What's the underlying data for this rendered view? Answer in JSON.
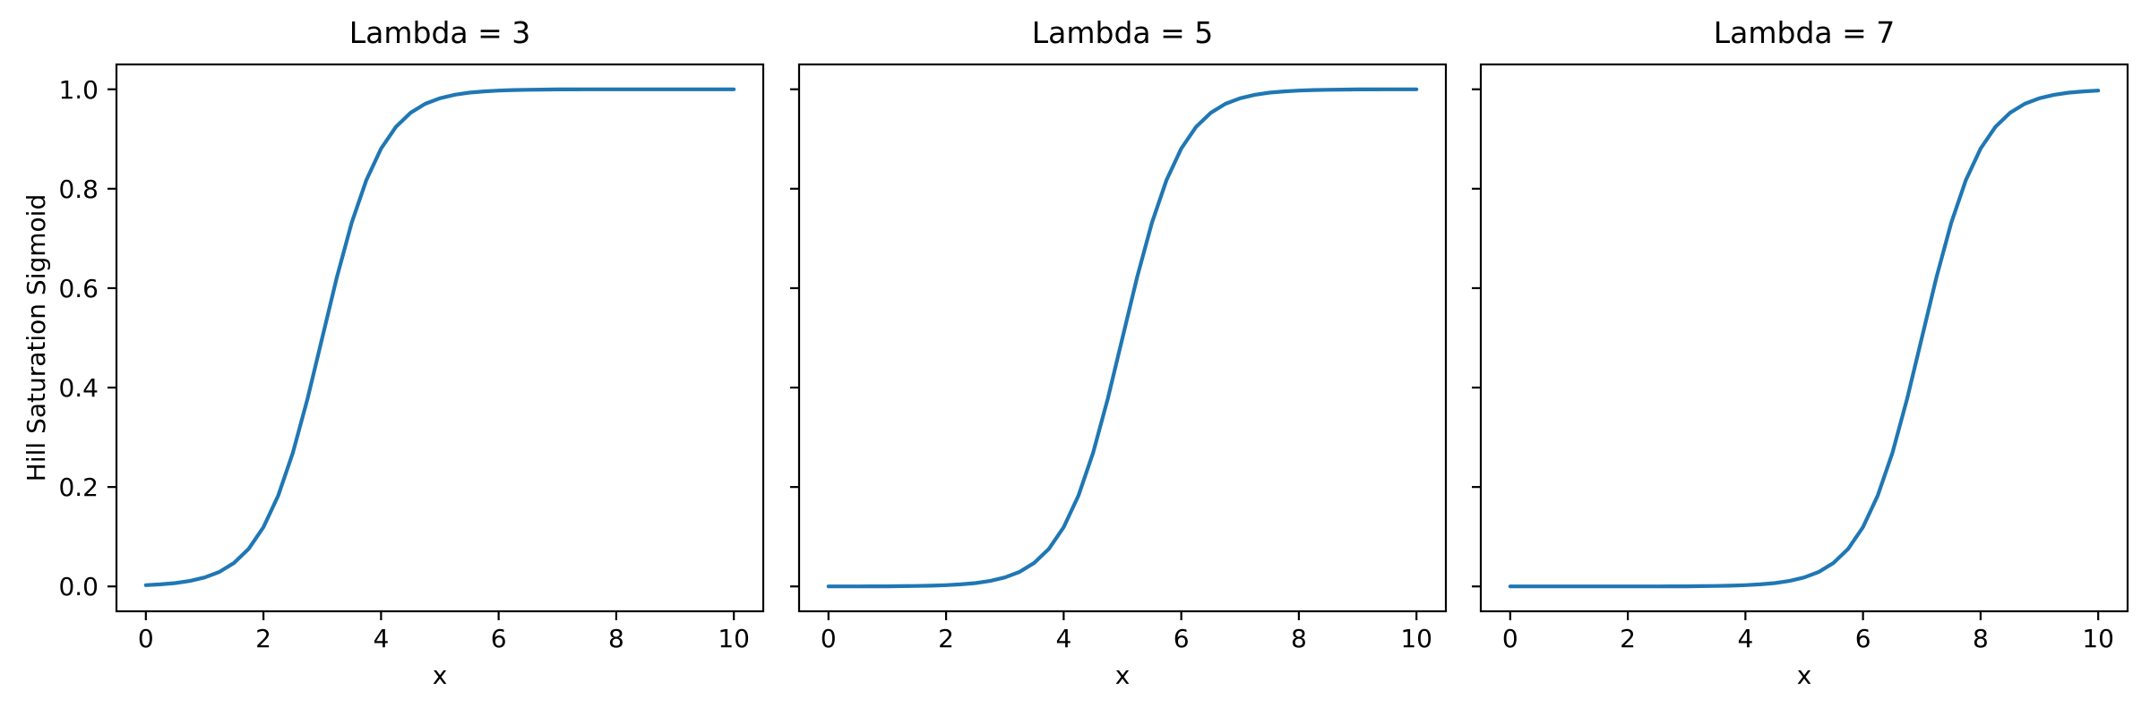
{
  "figure": {
    "background": "#ffffff",
    "axis_color": "#000000",
    "text_color": "#000000"
  },
  "chart_data": [
    {
      "type": "line",
      "title": "Lambda = 3",
      "lambda": 3,
      "xlabel": "x",
      "ylabel": "Hill Saturation Sigmoid",
      "xlim": [
        -0.5,
        10.5
      ],
      "ylim": [
        -0.05,
        1.05
      ],
      "grid": false,
      "legend": null,
      "x_ticks": [
        0,
        2,
        4,
        6,
        8,
        10
      ],
      "x_tick_labels": [
        "0",
        "2",
        "4",
        "6",
        "8",
        "10"
      ],
      "y_ticks": [
        0.0,
        0.2,
        0.4,
        0.6,
        0.8,
        1.0
      ],
      "y_tick_labels": [
        "0.0",
        "0.2",
        "0.4",
        "0.6",
        "0.8",
        "1.0"
      ],
      "show_y_tick_labels": true,
      "series": [
        {
          "color": "#1f77b4",
          "x": [
            0,
            0.25,
            0.5,
            0.75,
            1,
            1.25,
            1.5,
            1.75,
            2,
            2.25,
            2.5,
            2.75,
            3,
            3.25,
            3.5,
            3.75,
            4,
            4.25,
            4.5,
            4.75,
            5,
            5.25,
            5.5,
            5.75,
            6,
            6.25,
            6.5,
            6.75,
            7,
            7.25,
            7.5,
            7.75,
            8,
            8.25,
            8.5,
            8.75,
            9,
            9.25,
            9.5,
            9.75,
            10
          ],
          "values": [
            0.0025,
            0.0041,
            0.0067,
            0.011,
            0.018,
            0.0293,
            0.0474,
            0.0759,
            0.1192,
            0.1824,
            0.2689,
            0.3775,
            0.5,
            0.6225,
            0.7311,
            0.8176,
            0.8808,
            0.9241,
            0.9526,
            0.9707,
            0.982,
            0.989,
            0.9933,
            0.9959,
            0.9975,
            0.9985,
            0.9991,
            0.9994,
            0.9997,
            0.9998,
            0.9999,
            0.9999,
            0.9999,
            1,
            1,
            1,
            1,
            1,
            1,
            1,
            1
          ]
        }
      ]
    },
    {
      "type": "line",
      "title": "Lambda = 5",
      "lambda": 5,
      "xlabel": "x",
      "ylabel": "",
      "xlim": [
        -0.5,
        10.5
      ],
      "ylim": [
        -0.05,
        1.05
      ],
      "grid": false,
      "legend": null,
      "x_ticks": [
        0,
        2,
        4,
        6,
        8,
        10
      ],
      "x_tick_labels": [
        "0",
        "2",
        "4",
        "6",
        "8",
        "10"
      ],
      "y_ticks": [
        0.0,
        0.2,
        0.4,
        0.6,
        0.8,
        1.0
      ],
      "y_tick_labels": [],
      "show_y_tick_labels": false,
      "series": [
        {
          "color": "#1f77b4",
          "x": [
            0,
            0.25,
            0.5,
            0.75,
            1,
            1.25,
            1.5,
            1.75,
            2,
            2.25,
            2.5,
            2.75,
            3,
            3.25,
            3.5,
            3.75,
            4,
            4.25,
            4.5,
            4.75,
            5,
            5.25,
            5.5,
            5.75,
            6,
            6.25,
            6.5,
            6.75,
            7,
            7.25,
            7.5,
            7.75,
            8,
            8.25,
            8.5,
            8.75,
            9,
            9.25,
            9.5,
            9.75,
            10
          ],
          "values": [
            0,
            0.0001,
            0.0001,
            0.0002,
            0.0003,
            0.0006,
            0.0009,
            0.0015,
            0.0025,
            0.0041,
            0.0067,
            0.011,
            0.018,
            0.0293,
            0.0474,
            0.0759,
            0.1192,
            0.1824,
            0.2689,
            0.3775,
            0.5,
            0.6225,
            0.7311,
            0.8176,
            0.8808,
            0.9241,
            0.9526,
            0.9707,
            0.982,
            0.989,
            0.9933,
            0.9959,
            0.9975,
            0.9985,
            0.9991,
            0.9994,
            0.9997,
            0.9998,
            0.9999,
            0.9999,
            0.9999
          ]
        }
      ]
    },
    {
      "type": "line",
      "title": "Lambda = 7",
      "lambda": 7,
      "xlabel": "x",
      "ylabel": "",
      "xlim": [
        -0.5,
        10.5
      ],
      "ylim": [
        -0.05,
        1.05
      ],
      "grid": false,
      "legend": null,
      "x_ticks": [
        0,
        2,
        4,
        6,
        8,
        10
      ],
      "x_tick_labels": [
        "0",
        "2",
        "4",
        "6",
        "8",
        "10"
      ],
      "y_ticks": [
        0.0,
        0.2,
        0.4,
        0.6,
        0.8,
        1.0
      ],
      "y_tick_labels": [],
      "show_y_tick_labels": false,
      "series": [
        {
          "color": "#1f77b4",
          "x": [
            0,
            0.25,
            0.5,
            0.75,
            1,
            1.25,
            1.5,
            1.75,
            2,
            2.25,
            2.5,
            2.75,
            3,
            3.25,
            3.5,
            3.75,
            4,
            4.25,
            4.5,
            4.75,
            5,
            5.25,
            5.5,
            5.75,
            6,
            6.25,
            6.5,
            6.75,
            7,
            7.25,
            7.5,
            7.75,
            8,
            8.25,
            8.5,
            8.75,
            9,
            9.25,
            9.5,
            9.75,
            10
          ],
          "values": [
            0,
            0,
            0,
            0,
            0,
            0,
            0,
            0,
            0,
            0.0001,
            0.0001,
            0.0002,
            0.0003,
            0.0006,
            0.0009,
            0.0015,
            0.0025,
            0.0041,
            0.0067,
            0.011,
            0.018,
            0.0293,
            0.0474,
            0.0759,
            0.1192,
            0.1824,
            0.2689,
            0.3775,
            0.5,
            0.6225,
            0.7311,
            0.8176,
            0.8808,
            0.9241,
            0.9526,
            0.9707,
            0.982,
            0.989,
            0.9933,
            0.9959,
            0.9975
          ]
        }
      ]
    }
  ]
}
